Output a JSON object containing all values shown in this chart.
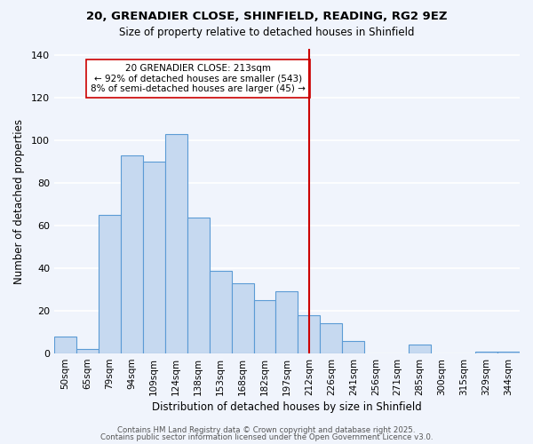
{
  "title_line1": "20, GRENADIER CLOSE, SHINFIELD, READING, RG2 9EZ",
  "title_line2": "Size of property relative to detached houses in Shinfield",
  "xlabel": "Distribution of detached houses by size in Shinfield",
  "ylabel": "Number of detached properties",
  "bin_labels": [
    "50sqm",
    "65sqm",
    "79sqm",
    "94sqm",
    "109sqm",
    "124sqm",
    "138sqm",
    "153sqm",
    "168sqm",
    "182sqm",
    "197sqm",
    "212sqm",
    "226sqm",
    "241sqm",
    "256sqm",
    "271sqm",
    "285sqm",
    "300sqm",
    "315sqm",
    "329sqm",
    "344sqm"
  ],
  "bar_heights": [
    8,
    2,
    65,
    93,
    90,
    103,
    64,
    39,
    33,
    25,
    29,
    18,
    14,
    6,
    0,
    0,
    4,
    0,
    0,
    1,
    1
  ],
  "bar_color": "#c6d9f0",
  "bar_edge_color": "#5b9bd5",
  "vline_x": 11.0,
  "vline_color": "#cc0000",
  "annotation_title": "20 GRENADIER CLOSE: 213sqm",
  "annotation_line1": "← 92% of detached houses are smaller (543)",
  "annotation_line2": "8% of semi-detached houses are larger (45) →",
  "annotation_box_color": "#ffffff",
  "annotation_box_edge": "#cc0000",
  "ylim": [
    0,
    143
  ],
  "yticks": [
    0,
    20,
    40,
    60,
    80,
    100,
    120,
    140
  ],
  "footer_line1": "Contains HM Land Registry data © Crown copyright and database right 2025.",
  "footer_line2": "Contains public sector information licensed under the Open Government Licence v3.0.",
  "background_color": "#f0f4fc",
  "grid_color": "#ffffff"
}
